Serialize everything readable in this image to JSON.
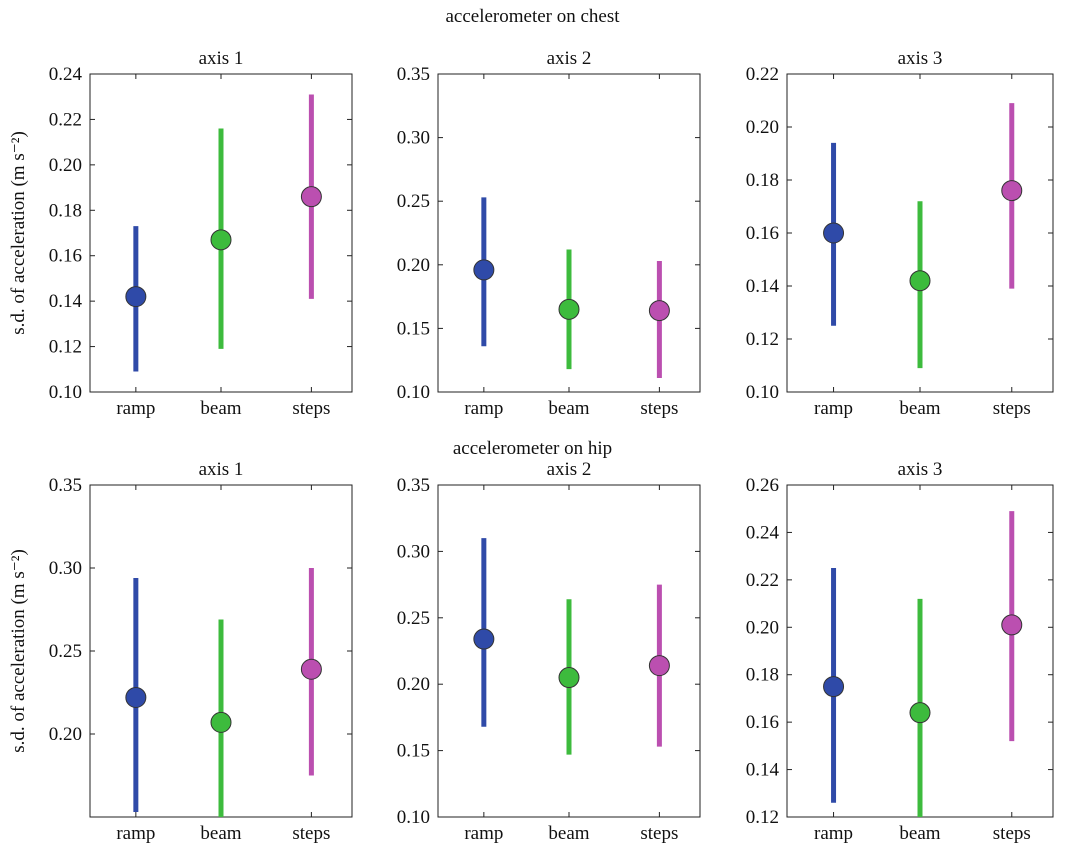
{
  "figure": {
    "row_titles": [
      "accelerometer on chest",
      "accelerometer on hip"
    ],
    "ylabel": "s.d. of acceleration (m s⁻²)"
  },
  "chart_data": [
    {
      "type": "scatter",
      "group": "accelerometer on chest",
      "title": "axis 1",
      "categories": [
        "ramp",
        "beam",
        "steps"
      ],
      "mean": [
        0.142,
        0.167,
        0.186
      ],
      "lower": [
        0.109,
        0.119,
        0.141
      ],
      "upper": [
        0.173,
        0.216,
        0.231
      ],
      "ylim": [
        0.1,
        0.24
      ],
      "yticks": [
        "0.10",
        "0.12",
        "0.14",
        "0.16",
        "0.18",
        "0.20",
        "0.22",
        "0.24"
      ],
      "ylabel": "s.d. of acceleration (m s⁻²)",
      "colors": [
        "#2f4aa8",
        "#3dbb3d",
        "#bb4fb0"
      ],
      "grid": false
    },
    {
      "type": "scatter",
      "group": "accelerometer on chest",
      "title": "axis 2",
      "categories": [
        "ramp",
        "beam",
        "steps"
      ],
      "mean": [
        0.196,
        0.165,
        0.164
      ],
      "lower": [
        0.136,
        0.118,
        0.111
      ],
      "upper": [
        0.253,
        0.212,
        0.203
      ],
      "ylim": [
        0.1,
        0.35
      ],
      "yticks": [
        "0.10",
        "0.15",
        "0.20",
        "0.25",
        "0.30",
        "0.35"
      ],
      "ylabel": "",
      "colors": [
        "#2f4aa8",
        "#3dbb3d",
        "#bb4fb0"
      ],
      "grid": false
    },
    {
      "type": "scatter",
      "group": "accelerometer on chest",
      "title": "axis 3",
      "categories": [
        "ramp",
        "beam",
        "steps"
      ],
      "mean": [
        0.16,
        0.142,
        0.176
      ],
      "lower": [
        0.125,
        0.109,
        0.139
      ],
      "upper": [
        0.194,
        0.172,
        0.209
      ],
      "ylim": [
        0.1,
        0.22
      ],
      "yticks": [
        "0.10",
        "0.12",
        "0.14",
        "0.16",
        "0.18",
        "0.20",
        "0.22"
      ],
      "ylabel": "",
      "colors": [
        "#2f4aa8",
        "#3dbb3d",
        "#bb4fb0"
      ],
      "grid": false
    },
    {
      "type": "scatter",
      "group": "accelerometer on hip",
      "title": "axis 1",
      "categories": [
        "ramp",
        "beam",
        "steps"
      ],
      "mean": [
        0.222,
        0.207,
        0.239
      ],
      "lower": [
        0.153,
        0.15,
        0.175
      ],
      "upper": [
        0.294,
        0.269,
        0.3
      ],
      "ylim": [
        0.15,
        0.35
      ],
      "yticks": [
        "0.20",
        "0.25",
        "0.30",
        "0.35"
      ],
      "yticks_values": [
        0.2,
        0.25,
        0.3,
        0.35
      ],
      "ylabel": "s.d. of acceleration (m s⁻²)",
      "colors": [
        "#2f4aa8",
        "#3dbb3d",
        "#bb4fb0"
      ],
      "grid": false
    },
    {
      "type": "scatter",
      "group": "accelerometer on hip",
      "title": "axis 2",
      "categories": [
        "ramp",
        "beam",
        "steps"
      ],
      "mean": [
        0.234,
        0.205,
        0.214
      ],
      "lower": [
        0.168,
        0.147,
        0.153
      ],
      "upper": [
        0.31,
        0.264,
        0.275
      ],
      "ylim": [
        0.1,
        0.35
      ],
      "yticks": [
        "0.10",
        "0.15",
        "0.20",
        "0.25",
        "0.30",
        "0.35"
      ],
      "ylabel": "",
      "colors": [
        "#2f4aa8",
        "#3dbb3d",
        "#bb4fb0"
      ],
      "grid": false
    },
    {
      "type": "scatter",
      "group": "accelerometer on hip",
      "title": "axis 3",
      "categories": [
        "ramp",
        "beam",
        "steps"
      ],
      "mean": [
        0.175,
        0.164,
        0.201
      ],
      "lower": [
        0.126,
        0.12,
        0.152
      ],
      "upper": [
        0.225,
        0.212,
        0.249
      ],
      "ylim": [
        0.12,
        0.26
      ],
      "yticks": [
        "0.12",
        "0.14",
        "0.16",
        "0.18",
        "0.20",
        "0.22",
        "0.24",
        "0.26"
      ],
      "ylabel": "",
      "colors": [
        "#2f4aa8",
        "#3dbb3d",
        "#bb4fb0"
      ],
      "grid": false
    }
  ]
}
